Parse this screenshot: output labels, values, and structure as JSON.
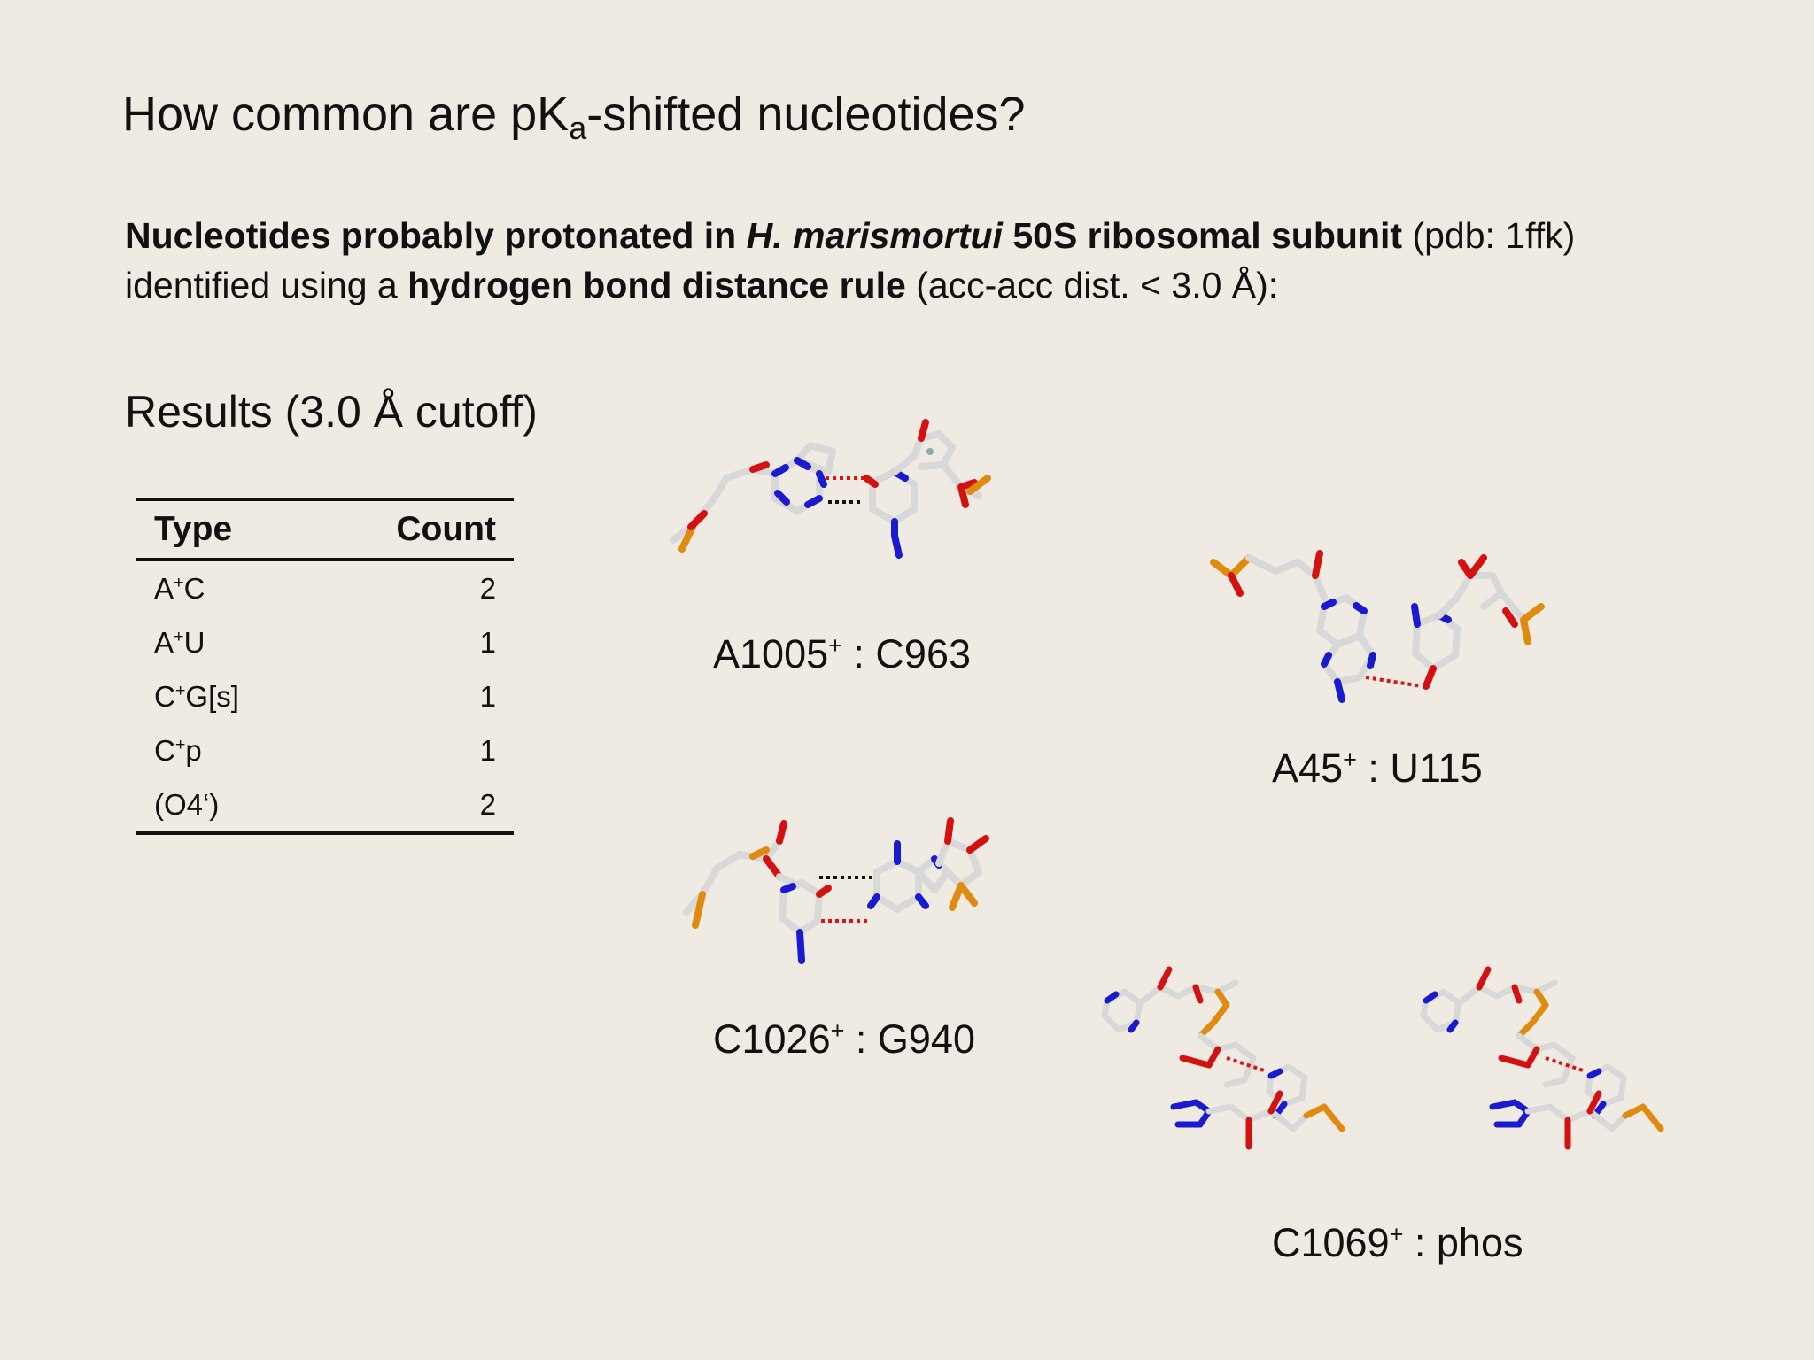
{
  "title": {
    "pre": "How common are pK",
    "sub": "a",
    "post": "-shifted nucleotides?"
  },
  "intro": {
    "b1": "Nucleotides probably protonated in ",
    "b2_italic": "H. marismortui",
    "b3": " 50S ribosomal subunit",
    "t1": " (pdb: 1ffk)",
    "t2": "identified using a ",
    "b4": "hydrogen bond distance rule",
    "t3": " (acc-acc dist. < 3.0 Å):"
  },
  "results_heading": "Results (3.0 Å cutoff)",
  "table": {
    "headers": [
      "Type",
      "Count"
    ],
    "rows": [
      {
        "pre": "A",
        "sup": "+",
        "post": "C",
        "count": "2"
      },
      {
        "pre": "A",
        "sup": "+",
        "post": "U",
        "count": "1"
      },
      {
        "pre": "C",
        "sup": "+",
        "post": "G[s]",
        "count": "1"
      },
      {
        "pre": "C",
        "sup": "+",
        "post": "p",
        "count": "1"
      },
      {
        "pre": "(O4‘)",
        "sup": "",
        "post": "",
        "count": "2"
      }
    ]
  },
  "captions": [
    {
      "a": "A1005",
      "sup": "+",
      "b": " : C963"
    },
    {
      "a": "A45",
      "sup": "+",
      "b": " : U115"
    },
    {
      "a": "C1026",
      "sup": "+",
      "b": " : G940"
    },
    {
      "a": "C1069",
      "sup": "+",
      "b": " : phos"
    }
  ],
  "colors": {
    "background": "#efebe3",
    "carbon": "#d8d8d8",
    "nitrogen": "#1a1ad0",
    "oxygen": "#d41010",
    "phosphorus": "#e08a10",
    "hbond_red": "#e01010",
    "hbond_black": "#111111"
  }
}
